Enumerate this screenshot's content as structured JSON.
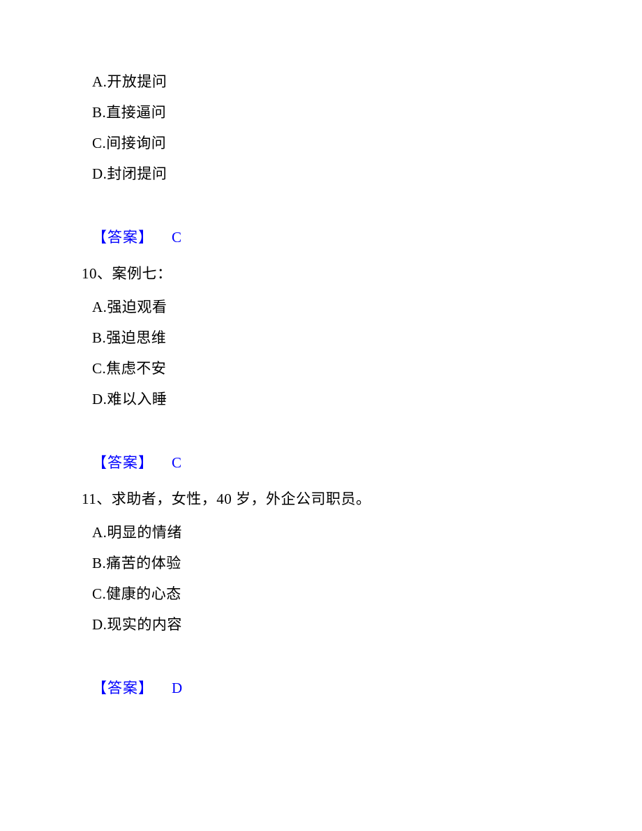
{
  "q9": {
    "options": {
      "A": "A.开放提问",
      "B": "B.直接逼问",
      "C": "C.间接询问",
      "D": "D.封闭提问"
    },
    "answer_label": "【答案】",
    "answer": "C"
  },
  "q10": {
    "stem": "10、案例七：",
    "options": {
      "A": "A.强迫观看",
      "B": "B.强迫思维",
      "C": "C.焦虑不安",
      "D": "D.难以入睡"
    },
    "answer_label": "【答案】",
    "answer": "C"
  },
  "q11": {
    "stem": "11、求助者，女性，40 岁，外企公司职员。",
    "options": {
      "A": "A.明显的情绪",
      "B": "B.痛苦的体验",
      "C": "C.健康的心态",
      "D": "D.现实的内容"
    },
    "answer_label": "【答案】",
    "answer": "D"
  }
}
